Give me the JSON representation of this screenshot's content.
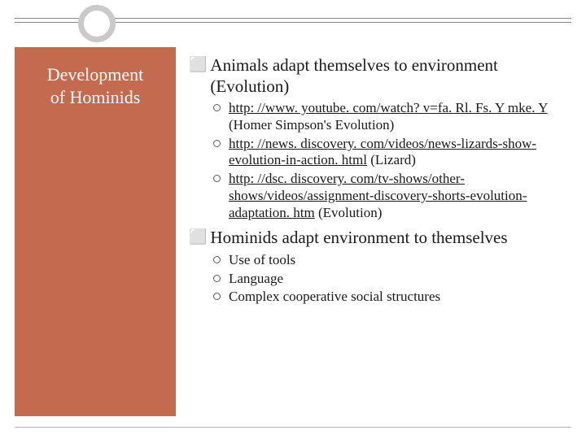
{
  "colors": {
    "sidebar_bg": "#c46a4f",
    "sidebar_text": "#ffffff",
    "body_text": "#1a1a1a",
    "ring": "#c9c9c9",
    "rule": "#888888"
  },
  "sidebar": {
    "title_line1": "Development",
    "title_line2": "of Hominids"
  },
  "content": {
    "bullets": [
      {
        "text": "Animals adapt themselves to environment (Evolution)",
        "subs": [
          {
            "link": "http: //www. youtube. com/watch? v=fa. Rl. Fs. Y mke. Y",
            "tail": " (Homer Simpson's Evolution)"
          },
          {
            "link": "http: //news. discovery. com/videos/news-lizards-show-evolution-in-action. html",
            "tail": " (Lizard)"
          },
          {
            "link": "http: //dsc. discovery. com/tv-shows/other-shows/videos/assignment-discovery-shorts-evolution-adaptation. htm",
            "tail": " (Evolution)"
          }
        ]
      },
      {
        "text": "Hominids adapt environment to themselves",
        "subs": [
          {
            "link": "",
            "tail": "Use of tools"
          },
          {
            "link": "",
            "tail": "Language"
          },
          {
            "link": "",
            "tail": "Complex cooperative social structures"
          }
        ]
      }
    ]
  }
}
